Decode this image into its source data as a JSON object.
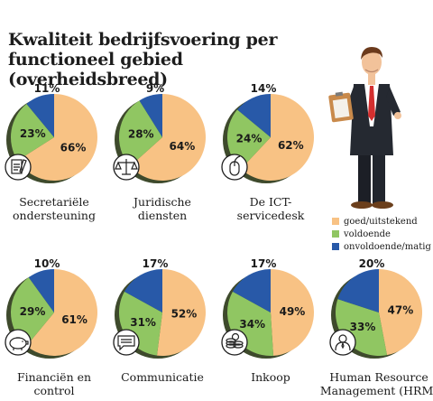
{
  "header": {
    "title": "Kwaliteit bedrijfsvoering per functioneel gebied (overheidsbreed)"
  },
  "colors": {
    "good": "#f8c284",
    "adequate": "#90c662",
    "poor": "#2859a8",
    "shadow": "#3e4a2c"
  },
  "legend": [
    {
      "label": "goed/uitstekend",
      "color": "#f8c284"
    },
    {
      "label": "voldoende",
      "color": "#90c662"
    },
    {
      "label": "onvoldoende/matig",
      "color": "#2859a8"
    }
  ],
  "chart_data": [
    {
      "type": "pie",
      "title": "Secretariële ondersteuning",
      "caption": [
        "Secretariële",
        "ondersteuning"
      ],
      "icon": "document-pen-icon",
      "slices": [
        {
          "label": "goed/uitstekend",
          "value": 66
        },
        {
          "label": "voldoende",
          "value": 23
        },
        {
          "label": "onvoldoende/matig",
          "value": 11
        }
      ]
    },
    {
      "type": "pie",
      "title": "Juridische diensten",
      "caption": [
        "Juridische",
        "diensten"
      ],
      "icon": "scales-icon",
      "slices": [
        {
          "label": "goed/uitstekend",
          "value": 64
        },
        {
          "label": "voldoende",
          "value": 28
        },
        {
          "label": "onvoldoende/matig",
          "value": 9
        }
      ]
    },
    {
      "type": "pie",
      "title": "De ICT-servicedesk",
      "caption": [
        "De ICT-",
        "servicedesk"
      ],
      "icon": "mouse-icon",
      "slices": [
        {
          "label": "goed/uitstekend",
          "value": 62
        },
        {
          "label": "voldoende",
          "value": 24
        },
        {
          "label": "onvoldoende/matig",
          "value": 14
        }
      ]
    },
    {
      "type": "pie",
      "title": "Financiën en control",
      "caption": [
        "Financiën en",
        "control"
      ],
      "icon": "piggy-bank-icon",
      "slices": [
        {
          "label": "goed/uitstekend",
          "value": 61
        },
        {
          "label": "voldoende",
          "value": 29
        },
        {
          "label": "onvoldoende/matig",
          "value": 10
        }
      ]
    },
    {
      "type": "pie",
      "title": "Communicatie",
      "caption": [
        "Communicatie"
      ],
      "icon": "speech-bubble-icon",
      "slices": [
        {
          "label": "goed/uitstekend",
          "value": 52
        },
        {
          "label": "voldoende",
          "value": 31
        },
        {
          "label": "onvoldoende/matig",
          "value": 17
        }
      ]
    },
    {
      "type": "pie",
      "title": "Inkoop",
      "caption": [
        "Inkoop"
      ],
      "icon": "coins-icon",
      "slices": [
        {
          "label": "goed/uitstekend",
          "value": 49
        },
        {
          "label": "voldoende",
          "value": 34
        },
        {
          "label": "onvoldoende/matig",
          "value": 17
        }
      ]
    },
    {
      "type": "pie",
      "title": "Human Resource Management (HRM)",
      "caption": [
        "Human Resource",
        "Management (HRM)"
      ],
      "icon": "person-icon",
      "slices": [
        {
          "label": "goed/uitstekend",
          "value": 47
        },
        {
          "label": "voldoende",
          "value": 33
        },
        {
          "label": "onvoldoende/matig",
          "value": 20
        }
      ]
    }
  ]
}
